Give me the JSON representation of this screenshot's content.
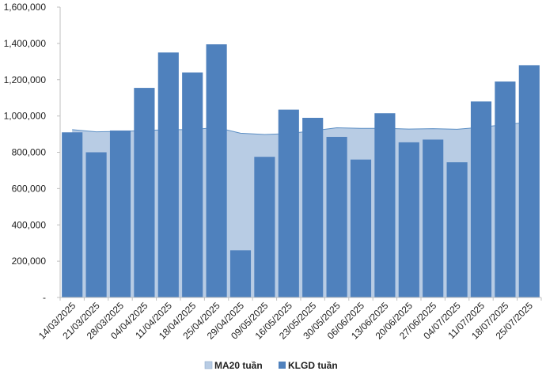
{
  "chart_data": {
    "type": "bar",
    "title": "",
    "xlabel": "",
    "ylabel": "",
    "ylim": [
      0,
      1600000
    ],
    "yticks": [
      0,
      200000,
      400000,
      600000,
      800000,
      1000000,
      1200000,
      1400000,
      1600000
    ],
    "ytick_labels": [
      "-",
      "200,000",
      "400,000",
      "600,000",
      "800,000",
      "1,000,000",
      "1,200,000",
      "1,400,000",
      "1,600,000"
    ],
    "grid": false,
    "legend_position": "bottom",
    "categories": [
      "14/03/2025",
      "21/03/2025",
      "28/03/2025",
      "04/04/2025",
      "11/04/2025",
      "18/04/2025",
      "25/04/2025",
      "29/04/2025",
      "09/05/2025",
      "16/05/2025",
      "23/05/2025",
      "30/05/2025",
      "06/06/2025",
      "13/06/2025",
      "20/06/2025",
      "27/06/2025",
      "04/07/2025",
      "11/07/2025",
      "18/07/2025",
      "25/07/2025"
    ],
    "series": [
      {
        "name": "MA20 tuần",
        "type": "area",
        "color": "#b8cce4",
        "line_color": "#5b8ec4",
        "values": [
          925000,
          913000,
          915000,
          920000,
          925000,
          925000,
          937000,
          905000,
          898000,
          903000,
          918000,
          935000,
          932000,
          932000,
          928000,
          930000,
          927000,
          938000,
          953000,
          965000
        ]
      },
      {
        "name": "KLGD tuần",
        "type": "bar",
        "color": "#4f81bd",
        "values": [
          910000,
          800000,
          920000,
          1155000,
          1350000,
          1240000,
          1395000,
          260000,
          775000,
          1035000,
          990000,
          885000,
          760000,
          1015000,
          855000,
          870000,
          745000,
          1080000,
          1190000,
          1280000
        ]
      }
    ]
  }
}
